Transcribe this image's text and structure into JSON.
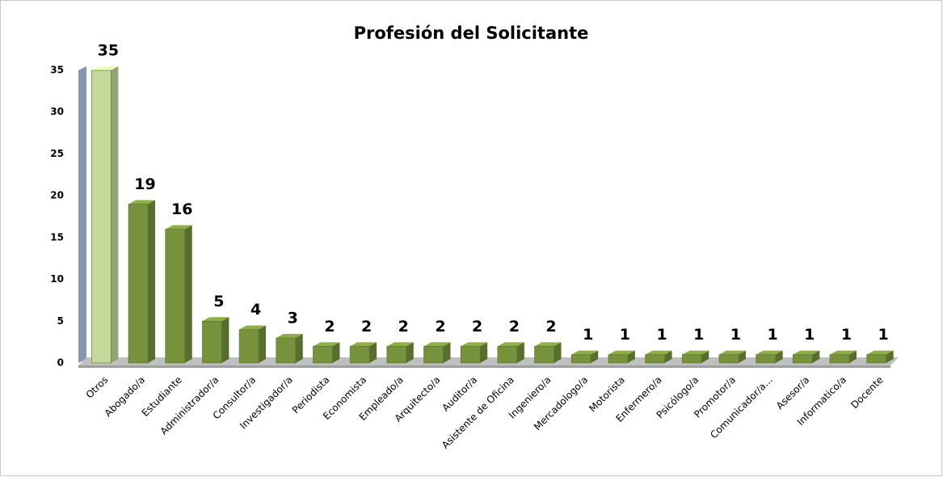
{
  "chart_data": {
    "type": "bar3d",
    "title": "Profesión del Solicitante",
    "categories": [
      "Otros",
      "Abogado/a",
      "Estudiante",
      "Administrador/a",
      "Consultor/a",
      "Investigador/a",
      "Periodista",
      "Economista",
      "Empleado/a",
      "Arquitecto/a",
      "Auditor/a",
      "Asistente de Oficina",
      "Ingeniero/a",
      "Mercadologo/a",
      "Motorista",
      "Enfermero/a",
      "Psicólogo/a",
      "Promotor/a",
      "Comunicador/a...",
      "Asesor/a",
      "Informatico/a",
      "Docente"
    ],
    "values": [
      35,
      19,
      16,
      5,
      4,
      3,
      2,
      2,
      2,
      2,
      2,
      2,
      2,
      1,
      1,
      1,
      1,
      1,
      1,
      1,
      1,
      1
    ],
    "colors": [
      "#c3d99a",
      "#76923c",
      "#76923c",
      "#76923c",
      "#76923c",
      "#76923c",
      "#76923c",
      "#76923c",
      "#76923c",
      "#76923c",
      "#76923c",
      "#76923c",
      "#76923c",
      "#76923c",
      "#76923c",
      "#76923c",
      "#76923c",
      "#76923c",
      "#76923c",
      "#76923c",
      "#76923c",
      "#76923c"
    ],
    "ylim": [
      0,
      35
    ],
    "yticks": [
      0,
      5,
      10,
      15,
      20,
      25,
      30,
      35
    ],
    "grid": false
  }
}
